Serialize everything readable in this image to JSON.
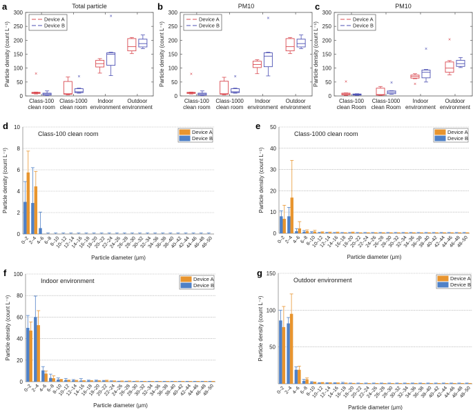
{
  "chart_data": [
    {
      "panel": "a",
      "type": "box",
      "title": "Total particle",
      "ylabel": "Particle density (count L⁻¹)",
      "ylim": [
        0,
        300
      ],
      "yticks": [
        0,
        50,
        100,
        150,
        200,
        250,
        300
      ],
      "categories": [
        "Class-100\nclean room",
        "Class-1000\nclean room",
        "Indoor\nenvironment",
        "Outdoor\nenvironment"
      ],
      "legend": {
        "position": "top-left",
        "entries": [
          "Device A",
          "Device B"
        ]
      },
      "series": [
        {
          "name": "Device A",
          "color": "#d9484f",
          "boxes": [
            {
              "min": 7,
              "q1": 9,
              "median": 11,
              "q3": 13,
              "max": 14,
              "outliers": [
                80
              ]
            },
            {
              "min": 4,
              "q1": 6,
              "median": 8,
              "q3": 52,
              "max": 68,
              "outliers": []
            },
            {
              "min": 82,
              "q1": 104,
              "median": 116,
              "q3": 128,
              "max": 134,
              "outliers": []
            },
            {
              "min": 152,
              "q1": 162,
              "median": 177,
              "q3": 206,
              "max": 210,
              "outliers": []
            }
          ]
        },
        {
          "name": "Device B",
          "color": "#4b4fb3",
          "boxes": [
            {
              "min": 1,
              "q1": 3,
              "median": 7,
              "q3": 10,
              "max": 18,
              "outliers": []
            },
            {
              "min": 10,
              "q1": 12,
              "median": 15,
              "q3": 26,
              "max": 28,
              "outliers": [
                71
              ]
            },
            {
              "min": 73,
              "q1": 110,
              "median": 150,
              "q3": 155,
              "max": 157,
              "outliers": [
                288
              ]
            },
            {
              "min": 170,
              "q1": 176,
              "median": 188,
              "q3": 204,
              "max": 219,
              "outliers": []
            }
          ]
        }
      ]
    },
    {
      "panel": "b",
      "type": "box",
      "title": "PM10",
      "ylabel": "Particle density (count L⁻¹)",
      "ylim": [
        0,
        300
      ],
      "yticks": [
        0,
        50,
        100,
        150,
        200,
        250,
        300
      ],
      "categories": [
        "Class-100\nclean room",
        "Class-1000\nclean room",
        "Indoor\nenvironment",
        "Outdoor\nenvironment"
      ],
      "legend": {
        "position": "top-left",
        "entries": [
          "Device A",
          "Device B"
        ]
      },
      "series": [
        {
          "name": "Device A",
          "color": "#d9484f",
          "boxes": [
            {
              "min": 7,
              "q1": 9,
              "median": 11,
              "q3": 13,
              "max": 14,
              "outliers": [
                79
              ]
            },
            {
              "min": 4,
              "q1": 6,
              "median": 8,
              "q3": 53,
              "max": 67,
              "outliers": []
            },
            {
              "min": 80,
              "q1": 102,
              "median": 113,
              "q3": 125,
              "max": 130,
              "outliers": []
            },
            {
              "min": 152,
              "q1": 162,
              "median": 177,
              "q3": 206,
              "max": 210,
              "outliers": []
            }
          ]
        },
        {
          "name": "Device B",
          "color": "#4b4fb3",
          "boxes": [
            {
              "min": 1,
              "q1": 3,
              "median": 7,
              "q3": 10,
              "max": 18,
              "outliers": []
            },
            {
              "min": 10,
              "q1": 12,
              "median": 15,
              "q3": 26,
              "max": 28,
              "outliers": [
                71
              ]
            },
            {
              "min": 72,
              "q1": 105,
              "median": 143,
              "q3": 155,
              "max": 157,
              "outliers": [
                280
              ]
            },
            {
              "min": 170,
              "q1": 176,
              "median": 188,
              "q3": 204,
              "max": 219,
              "outliers": []
            }
          ]
        }
      ]
    },
    {
      "panel": "c",
      "type": "box",
      "title": "PM10",
      "ylabel": "Particle density (count L⁻¹)",
      "ylim": [
        0,
        300
      ],
      "yticks": [
        0,
        50,
        100,
        150,
        200,
        250,
        300
      ],
      "categories": [
        "Class-100\nclean Room",
        "Class-1000\nclean Room",
        "Indoor\nenvironment",
        "Outdoor\nenvironment"
      ],
      "legend": {
        "position": "top-left",
        "entries": [
          "Device A",
          "Device B"
        ]
      },
      "series": [
        {
          "name": "Device A",
          "color": "#d9484f",
          "boxes": [
            {
              "min": 2,
              "q1": 4,
              "median": 7,
              "q3": 10,
              "max": 11,
              "outliers": [
                52
              ]
            },
            {
              "min": 2,
              "q1": 3,
              "median": 5,
              "q3": 28,
              "max": 34,
              "outliers": []
            },
            {
              "min": 62,
              "q1": 64,
              "median": 70,
              "q3": 75,
              "max": 80,
              "outliers": [
                44
              ]
            },
            {
              "min": 76,
              "q1": 85,
              "median": 100,
              "q3": 122,
              "max": 127,
              "outliers": [
                203
              ]
            }
          ]
        },
        {
          "name": "Device B",
          "color": "#4b4fb3",
          "boxes": [
            {
              "min": 2,
              "q1": 3,
              "median": 5,
              "q3": 7,
              "max": 8,
              "outliers": []
            },
            {
              "min": 6,
              "q1": 8,
              "median": 13,
              "q3": 18,
              "max": 19,
              "outliers": [
                48
              ]
            },
            {
              "min": 50,
              "q1": 65,
              "median": 85,
              "q3": 93,
              "max": 95,
              "outliers": [
                170
              ]
            },
            {
              "min": 102,
              "q1": 106,
              "median": 116,
              "q3": 128,
              "max": 138,
              "outliers": []
            }
          ]
        }
      ]
    },
    {
      "panel": "d",
      "type": "bar",
      "title": "Class-100 clean room",
      "xlabel": "Particle diameter (μm)",
      "ylabel": "Particle density (count L⁻¹)",
      "ylim": [
        0,
        10
      ],
      "yticks": [
        0,
        2,
        4,
        6,
        8,
        10
      ],
      "grid": true,
      "legend": {
        "position": "top-right",
        "entries": [
          "Device A",
          "Device B"
        ]
      },
      "categories": [
        "0–2",
        "2–4",
        "4–6",
        "6–8",
        "8–10",
        "10–12",
        "12–14",
        "14–16",
        "16–18",
        "18–20",
        "20–22",
        "22–24",
        "24–26",
        "26–28",
        "28–30",
        "30–32",
        "32–34",
        "34–36",
        "36–38",
        "38–40",
        "40–42",
        "42–44",
        "44–46",
        "46–48",
        "48–50"
      ],
      "series": [
        {
          "name": "Device B",
          "color": "#4f81c7",
          "values": [
            3.0,
            2.9,
            0.55,
            0,
            0,
            0,
            0,
            0,
            0,
            0,
            0,
            0,
            0,
            0,
            0,
            0,
            0,
            0,
            0,
            0,
            0,
            0,
            0,
            0,
            0
          ],
          "errors": [
            1.9,
            3.3,
            1.5,
            0.1,
            0.1,
            0.1,
            0.1,
            0.1,
            0.1,
            0.1,
            0.1,
            0.1,
            0.1,
            0.1,
            0.1,
            0.1,
            0.1,
            0.1,
            0.1,
            0.1,
            0.1,
            0.1,
            0.1,
            0.1,
            0.1
          ]
        },
        {
          "name": "Device A",
          "color": "#e8952f",
          "values": [
            5.75,
            4.45,
            0,
            0,
            0,
            0,
            0,
            0,
            0,
            0,
            0,
            0,
            0,
            0,
            0,
            0,
            0,
            0,
            0,
            0,
            0,
            0,
            0,
            0,
            0
          ],
          "errors": [
            2.0,
            1.4,
            0,
            0,
            0,
            0,
            0,
            0,
            0,
            0,
            0,
            0,
            0,
            0,
            0,
            0,
            0,
            0,
            0,
            0,
            0,
            0,
            0,
            0,
            0
          ]
        }
      ]
    },
    {
      "panel": "e",
      "type": "bar",
      "title": "Class-1000 clean room",
      "xlabel": "Particle diameter (μm)",
      "ylabel": "Particle density (count L⁻¹)",
      "ylim": [
        0,
        50
      ],
      "yticks": [
        0,
        10,
        20,
        30,
        40,
        50
      ],
      "grid": true,
      "legend": {
        "position": "top-right",
        "entries": [
          "Device A",
          "Device B"
        ]
      },
      "categories": [
        "0–2",
        "2–4",
        "4–6",
        "6–8",
        "8–10",
        "10–12",
        "12–14",
        "14–16",
        "16–18",
        "18–20",
        "20–22",
        "22–24",
        "24–26",
        "26–28",
        "28–30",
        "30–32",
        "32–34",
        "34–36",
        "36–38",
        "38–40",
        "40–42",
        "42–44",
        "44–46",
        "46–48",
        "48–50"
      ],
      "series": [
        {
          "name": "Device B",
          "color": "#4f81c7",
          "values": [
            8.0,
            8.0,
            1.0,
            0.7,
            0.4,
            0.2,
            0.2,
            0.1,
            0.1,
            0.1,
            0.1,
            0.1,
            0.1,
            0.1,
            0.1,
            0.1,
            0.1,
            0.1,
            0.1,
            0.1,
            0.1,
            0.1,
            0.1,
            0.1,
            0.1
          ],
          "errors": [
            2.6,
            4.2,
            1.2,
            0.6,
            0.4,
            0.3,
            0.3,
            0.3,
            0.3,
            0.3,
            0.3,
            0.3,
            0.3,
            0.3,
            0.3,
            0.3,
            0.3,
            0.3,
            0.3,
            0.3,
            0.3,
            0.3,
            0.3,
            0.3,
            0.3
          ]
        },
        {
          "name": "Device A",
          "color": "#e8952f",
          "values": [
            6.8,
            16.8,
            2.3,
            1.0,
            0.8,
            0.5,
            0.4,
            0.4,
            0.2,
            0.4,
            0.2,
            0.2,
            0.2,
            0.2,
            0.2,
            0.2,
            0.2,
            0.2,
            0.2,
            0.2,
            0.2,
            0.2,
            0.2,
            0.2,
            0.2
          ],
          "errors": [
            6.4,
            17.5,
            3.2,
            0.6,
            0.6,
            0.2,
            0.2,
            0.2,
            0.1,
            0.2,
            0.1,
            0.1,
            0.1,
            0.1,
            0.1,
            0.1,
            0.1,
            0.1,
            0.1,
            0.1,
            0.1,
            0.1,
            0.1,
            0.1,
            0.1
          ]
        }
      ]
    },
    {
      "panel": "f",
      "type": "bar",
      "title": "Indoor environment",
      "xlabel": "Particle diameter (μm)",
      "ylabel": "Particle density (count L⁻¹)",
      "ylim": [
        0,
        100
      ],
      "yticks": [
        0,
        20,
        40,
        60,
        80,
        100
      ],
      "grid": true,
      "legend": {
        "position": "top-right",
        "entries": [
          "Device A",
          "Device B"
        ]
      },
      "categories": [
        "0–2",
        "2–4",
        "4–6",
        "6–8",
        "8–10",
        "10–12",
        "12–14",
        "14–16",
        "16–18",
        "18–20",
        "20–22",
        "22–24",
        "24–26",
        "26–28",
        "28–30",
        "30–32",
        "32–34",
        "34–36",
        "36–38",
        "38–40",
        "40–42",
        "42–44",
        "44–46",
        "46–48",
        "48–50"
      ],
      "series": [
        {
          "name": "Device B",
          "color": "#4f81c7",
          "values": [
            50,
            60,
            10.5,
            3.5,
            2.0,
            1.5,
            1.2,
            1.0,
            1.0,
            1.0,
            0.8,
            0.5,
            0.3,
            0.3,
            0.2,
            0.2,
            0.2,
            0.2,
            0.2,
            0.2,
            0.2,
            0.2,
            0.2,
            0.2,
            0.2
          ],
          "errors": [
            11.5,
            19.5,
            3.5,
            3.5,
            1.5,
            1.5,
            0.8,
            1.8,
            0.5,
            0.5,
            0.4,
            0.3,
            0.2,
            0.2,
            0.2,
            0.2,
            0.2,
            0.2,
            0.2,
            0.2,
            0.2,
            0.2,
            0.2,
            0.2,
            0.2
          ]
        },
        {
          "name": "Device A",
          "color": "#e8952f",
          "values": [
            47.5,
            52.5,
            7.5,
            3.2,
            1.8,
            1.2,
            1.0,
            0.8,
            0.8,
            0.8,
            1.0,
            0.6,
            0.5,
            0.5,
            0.4,
            0.3,
            0.3,
            0.3,
            0.3,
            0.3,
            0.3,
            0.3,
            0.3,
            0.3,
            0.3
          ],
          "errors": [
            8.0,
            13.5,
            2.5,
            2.3,
            0.5,
            0.4,
            0.3,
            0.3,
            0.3,
            0.3,
            0.4,
            0.2,
            0.2,
            0.2,
            0.2,
            0.1,
            0.1,
            0.1,
            0.1,
            0.1,
            0.1,
            0.1,
            0.1,
            0.1,
            0.1
          ]
        }
      ]
    },
    {
      "panel": "g",
      "type": "bar",
      "title": "Outdoor environment",
      "xlabel": "Particle diameter (μm)",
      "ylabel": "Particle density (count L⁻¹)",
      "ylim": [
        0,
        150
      ],
      "yticks": [
        50,
        100,
        150
      ],
      "grid": true,
      "legend": {
        "position": "top-right",
        "entries": [
          "Device A",
          "Device B"
        ]
      },
      "categories": [
        "0–2",
        "2–4",
        "4–6",
        "6–8",
        "8–10",
        "10–12",
        "12–14",
        "14–16",
        "16–18",
        "18–20",
        "20–22",
        "22–24",
        "24–26",
        "26–28",
        "28–30",
        "30–32",
        "32–34",
        "34–36",
        "36–38",
        "38–40",
        "40–42",
        "42–44",
        "44–46",
        "46–48",
        "48–50"
      ],
      "series": [
        {
          "name": "Device B",
          "color": "#4f81c7",
          "values": [
            86,
            82,
            19,
            4,
            2,
            1,
            1,
            1,
            1,
            0.5,
            0.5,
            0.5,
            0.5,
            0.5,
            0.5,
            0.5,
            0.5,
            0.5,
            0.5,
            0.5,
            0.5,
            0.5,
            0.5,
            0.5,
            0.5
          ],
          "errors": [
            14,
            8,
            4,
            2,
            1,
            0.5,
            0.5,
            0.5,
            1,
            0.5,
            0.5,
            0.5,
            0.5,
            0.5,
            0.5,
            0.5,
            0.5,
            0.5,
            0.5,
            0.5,
            0.5,
            0.5,
            0.5,
            0.5,
            0.5
          ]
        },
        {
          "name": "Device A",
          "color": "#e8952f",
          "values": [
            77,
            95,
            19,
            6,
            2,
            1.5,
            1.2,
            1,
            0.8,
            0.5,
            0.4,
            0.4,
            0.4,
            0.4,
            0.4,
            0.4,
            0.4,
            0.4,
            0.4,
            0.4,
            0.4,
            0.4,
            0.4,
            0.4,
            0.4
          ],
          "errors": [
            28,
            27,
            5,
            2,
            0.5,
            0.3,
            0.3,
            0.3,
            0.3,
            0.2,
            0.2,
            0.2,
            0.2,
            0.2,
            0.2,
            0.2,
            0.2,
            0.2,
            0.2,
            0.2,
            0.2,
            0.2,
            0.2,
            0.2,
            0.2
          ]
        }
      ]
    }
  ]
}
